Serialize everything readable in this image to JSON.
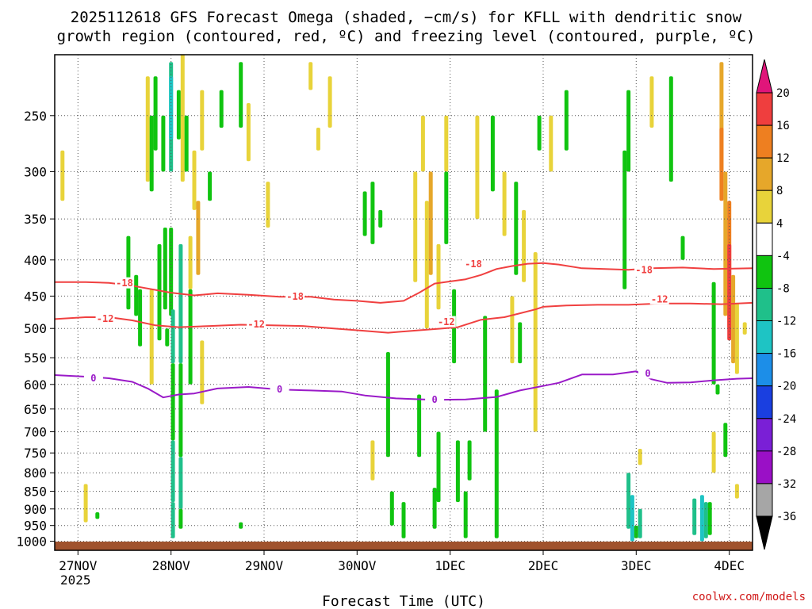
{
  "chart_data": {
    "type": "heatmap",
    "title_lines": [
      "2025112618 GFS Forecast Omega (shaded, −cm/s) for KFLL with dendritic snow",
      "growth region (contoured, red, ºC) and freezing level (contoured, purple, ºC)"
    ],
    "xlabel": "Forecast Time (UTC)",
    "credit": "coolwx.com/models",
    "x_ticks": [
      {
        "hour": 0,
        "label": "27NOV",
        "sublabel": "2025"
      },
      {
        "hour": 24,
        "label": "28NOV"
      },
      {
        "hour": 48,
        "label": "29NOV"
      },
      {
        "hour": 72,
        "label": "30NOV"
      },
      {
        "hour": 96,
        "label": "1DEC"
      },
      {
        "hour": 120,
        "label": "2DEC"
      },
      {
        "hour": 144,
        "label": "3DEC"
      },
      {
        "hour": 168,
        "label": "4DEC"
      }
    ],
    "xlim_hours": [
      -6,
      174
    ],
    "ylim_hpa": [
      1030,
      205
    ],
    "y_ticks": [
      250,
      300,
      350,
      400,
      450,
      500,
      550,
      600,
      650,
      700,
      750,
      800,
      850,
      900,
      950,
      1000
    ],
    "colorbar": {
      "ticks": [
        20,
        16,
        12,
        8,
        4,
        -4,
        -8,
        -12,
        -16,
        -20,
        -24,
        -28,
        -32,
        -36
      ],
      "colors": [
        "#ffffff",
        "#fcf200",
        "#eccc28",
        "#e6a226",
        "#e8731c",
        "#ec3c32",
        "#d7196f",
        "#ffffff",
        "#0ac40a",
        "#1ebe6e",
        "#19c2c8",
        "#1a8ce6",
        "#1440d8",
        "#7a1ad2",
        "#9d10c4",
        "#a8a8a8",
        "#000000"
      ],
      "bands": [
        {
          "from": 20,
          "to": null,
          "color": "#e0157a"
        },
        {
          "from": 16,
          "to": 20,
          "color": "#ef3e3e"
        },
        {
          "from": 12,
          "to": 16,
          "color": "#ee7f20"
        },
        {
          "from": 8,
          "to": 12,
          "color": "#e6a72a"
        },
        {
          "from": 4,
          "to": 8,
          "color": "#e8d33a"
        },
        {
          "from": -4,
          "to": 4,
          "color": "#ffffff"
        },
        {
          "from": -8,
          "to": -4,
          "color": "#10c410"
        },
        {
          "from": -12,
          "to": -8,
          "color": "#1fc08a"
        },
        {
          "from": -16,
          "to": -12,
          "color": "#1ec4c4"
        },
        {
          "from": -20,
          "to": -16,
          "color": "#1c8ee8"
        },
        {
          "from": -24,
          "to": -20,
          "color": "#1a3fe0"
        },
        {
          "from": -28,
          "to": -24,
          "color": "#7a1fd6"
        },
        {
          "from": -32,
          "to": -28,
          "color": "#9a10c6"
        },
        {
          "from": -36,
          "to": -32,
          "color": "#a6a6a6"
        },
        {
          "from": null,
          "to": -36,
          "color": "#000000"
        }
      ]
    },
    "series": [
      {
        "name": "-18",
        "color": "#f04040",
        "label_positions": [
          [
            12,
            431
          ],
          [
            56,
            450
          ],
          [
            102,
            405
          ],
          [
            146,
            413
          ]
        ],
        "points": [
          [
            -6,
            430
          ],
          [
            2,
            430
          ],
          [
            8,
            431
          ],
          [
            14,
            435
          ],
          [
            20,
            441
          ],
          [
            24,
            445
          ],
          [
            30,
            449
          ],
          [
            36,
            446
          ],
          [
            44,
            448
          ],
          [
            52,
            451
          ],
          [
            60,
            451
          ],
          [
            66,
            455
          ],
          [
            72,
            457
          ],
          [
            78,
            460
          ],
          [
            84,
            457
          ],
          [
            88,
            445
          ],
          [
            92,
            432
          ],
          [
            96,
            429
          ],
          [
            100,
            426
          ],
          [
            104,
            420
          ],
          [
            108,
            412
          ],
          [
            112,
            408
          ],
          [
            116,
            405
          ],
          [
            120,
            404
          ],
          [
            124,
            406
          ],
          [
            130,
            411
          ],
          [
            136,
            412
          ],
          [
            142,
            413
          ],
          [
            148,
            411
          ],
          [
            156,
            410
          ],
          [
            164,
            412
          ],
          [
            174,
            411
          ]
        ]
      },
      {
        "name": "-12",
        "color": "#f04040",
        "label_positions": [
          [
            7,
            484
          ],
          [
            46,
            493
          ],
          [
            95,
            489
          ],
          [
            150,
            454
          ]
        ],
        "points": [
          [
            -6,
            485
          ],
          [
            2,
            482
          ],
          [
            8,
            482
          ],
          [
            14,
            487
          ],
          [
            20,
            495
          ],
          [
            26,
            498
          ],
          [
            34,
            496
          ],
          [
            42,
            494
          ],
          [
            50,
            495
          ],
          [
            58,
            496
          ],
          [
            66,
            500
          ],
          [
            74,
            504
          ],
          [
            80,
            507
          ],
          [
            88,
            503
          ],
          [
            94,
            500
          ],
          [
            98,
            498
          ],
          [
            104,
            486
          ],
          [
            110,
            482
          ],
          [
            114,
            476
          ],
          [
            118,
            470
          ],
          [
            120,
            466
          ],
          [
            126,
            464
          ],
          [
            134,
            463
          ],
          [
            142,
            463
          ],
          [
            150,
            461
          ],
          [
            158,
            461
          ],
          [
            166,
            462
          ],
          [
            174,
            460
          ]
        ]
      },
      {
        "name": "0",
        "color": "#9a1ac8",
        "label_positions": [
          [
            4,
            587
          ],
          [
            52,
            609
          ],
          [
            92,
            630
          ],
          [
            147,
            578
          ]
        ],
        "points": [
          [
            -6,
            582
          ],
          [
            2,
            585
          ],
          [
            8,
            588
          ],
          [
            14,
            595
          ],
          [
            18,
            608
          ],
          [
            22,
            626
          ],
          [
            26,
            620
          ],
          [
            30,
            618
          ],
          [
            36,
            608
          ],
          [
            44,
            605
          ],
          [
            52,
            610
          ],
          [
            60,
            612
          ],
          [
            68,
            614
          ],
          [
            74,
            622
          ],
          [
            82,
            628
          ],
          [
            92,
            631
          ],
          [
            100,
            630
          ],
          [
            108,
            625
          ],
          [
            114,
            612
          ],
          [
            120,
            603
          ],
          [
            124,
            597
          ],
          [
            130,
            581
          ],
          [
            138,
            581
          ],
          [
            144,
            575
          ],
          [
            148,
            590
          ],
          [
            152,
            597
          ],
          [
            158,
            596
          ],
          [
            164,
            592
          ],
          [
            170,
            589
          ],
          [
            174,
            588
          ]
        ]
      }
    ],
    "shading_cells": [
      [
        -4,
        280,
        330,
        6
      ],
      [
        2,
        830,
        940,
        5
      ],
      [
        5,
        910,
        930,
        -8
      ],
      [
        13,
        370,
        470,
        -6
      ],
      [
        15,
        420,
        480,
        -5
      ],
      [
        16,
        440,
        530,
        -8
      ],
      [
        18,
        220,
        310,
        6
      ],
      [
        19,
        250,
        320,
        -6
      ],
      [
        19,
        440,
        600,
        6
      ],
      [
        20,
        220,
        280,
        -6
      ],
      [
        21,
        380,
        520,
        -6
      ],
      [
        22,
        250,
        300,
        -6
      ],
      [
        22.5,
        360,
        470,
        -6
      ],
      [
        23,
        500,
        530,
        -6
      ],
      [
        24,
        210,
        300,
        -10
      ],
      [
        24,
        220,
        270,
        -14
      ],
      [
        24,
        360,
        480,
        -6
      ],
      [
        24.5,
        470,
        560,
        -10
      ],
      [
        24.5,
        560,
        720,
        -6
      ],
      [
        24.5,
        720,
        880,
        -10
      ],
      [
        24.5,
        880,
        990,
        -10
      ],
      [
        26,
        230,
        270,
        -6
      ],
      [
        26.5,
        380,
        560,
        -10
      ],
      [
        26.5,
        560,
        760,
        -6
      ],
      [
        26.5,
        760,
        900,
        -10
      ],
      [
        26.5,
        900,
        960,
        -6
      ],
      [
        27,
        200,
        310,
        6
      ],
      [
        28,
        250,
        300,
        -6
      ],
      [
        29,
        370,
        440,
        6
      ],
      [
        29,
        440,
        600,
        -6
      ],
      [
        30,
        280,
        340,
        6
      ],
      [
        31,
        330,
        420,
        10
      ],
      [
        32,
        520,
        640,
        6
      ],
      [
        32,
        230,
        280,
        6
      ],
      [
        34,
        300,
        330,
        -6
      ],
      [
        37,
        230,
        260,
        -6
      ],
      [
        42,
        210,
        260,
        -6
      ],
      [
        42,
        940,
        960,
        -6
      ],
      [
        44,
        240,
        290,
        6
      ],
      [
        49,
        310,
        360,
        6
      ],
      [
        60,
        210,
        230,
        6
      ],
      [
        62,
        260,
        280,
        6
      ],
      [
        65,
        220,
        260,
        6
      ],
      [
        74,
        320,
        370,
        -6
      ],
      [
        76,
        310,
        380,
        -6
      ],
      [
        76,
        720,
        820,
        6
      ],
      [
        78,
        340,
        360,
        -6
      ],
      [
        80,
        540,
        760,
        -6
      ],
      [
        81,
        850,
        950,
        -6
      ],
      [
        84,
        880,
        990,
        -6
      ],
      [
        88,
        620,
        760,
        -6
      ],
      [
        87,
        300,
        430,
        6
      ],
      [
        89,
        250,
        300,
        6
      ],
      [
        90,
        330,
        500,
        6
      ],
      [
        91,
        300,
        420,
        10
      ],
      [
        92,
        840,
        960,
        -6
      ],
      [
        93,
        380,
        470,
        6
      ],
      [
        93,
        700,
        880,
        -6
      ],
      [
        95,
        300,
        380,
        -6
      ],
      [
        95,
        250,
        300,
        6
      ],
      [
        97,
        440,
        560,
        -6
      ],
      [
        98,
        720,
        880,
        -6
      ],
      [
        100,
        850,
        990,
        -6
      ],
      [
        101,
        720,
        820,
        -6
      ],
      [
        103,
        250,
        350,
        6
      ],
      [
        105,
        480,
        700,
        -6
      ],
      [
        107,
        250,
        320,
        -6
      ],
      [
        108,
        610,
        990,
        -6
      ],
      [
        110,
        300,
        370,
        6
      ],
      [
        112,
        450,
        560,
        6
      ],
      [
        113,
        310,
        420,
        -6
      ],
      [
        114,
        490,
        560,
        -6
      ],
      [
        115,
        340,
        430,
        6
      ],
      [
        118,
        390,
        700,
        6
      ],
      [
        119,
        250,
        280,
        -6
      ],
      [
        122,
        250,
        300,
        6
      ],
      [
        126,
        230,
        280,
        -6
      ],
      [
        141,
        280,
        440,
        -6
      ],
      [
        142,
        230,
        300,
        -6
      ],
      [
        142,
        800,
        960,
        -10
      ],
      [
        143,
        860,
        1000,
        -14
      ],
      [
        144,
        950,
        990,
        -6
      ],
      [
        145,
        900,
        990,
        -10
      ],
      [
        148,
        220,
        260,
        6
      ],
      [
        145,
        740,
        780,
        6
      ],
      [
        153,
        220,
        310,
        -6
      ],
      [
        156,
        370,
        400,
        -6
      ],
      [
        159,
        870,
        980,
        -10
      ],
      [
        161,
        860,
        1000,
        -14
      ],
      [
        162,
        880,
        990,
        -10
      ],
      [
        163,
        880,
        980,
        -6
      ],
      [
        164,
        430,
        600,
        -6
      ],
      [
        165,
        600,
        620,
        -6
      ],
      [
        164,
        700,
        800,
        6
      ],
      [
        166,
        210,
        300,
        10
      ],
      [
        166,
        260,
        330,
        14
      ],
      [
        167,
        300,
        480,
        10
      ],
      [
        167,
        680,
        760,
        -6
      ],
      [
        168,
        330,
        500,
        14
      ],
      [
        168,
        380,
        520,
        18
      ],
      [
        169,
        420,
        560,
        10
      ],
      [
        170,
        460,
        580,
        6
      ],
      [
        170,
        830,
        870,
        6
      ],
      [
        172,
        490,
        510,
        6
      ]
    ]
  }
}
